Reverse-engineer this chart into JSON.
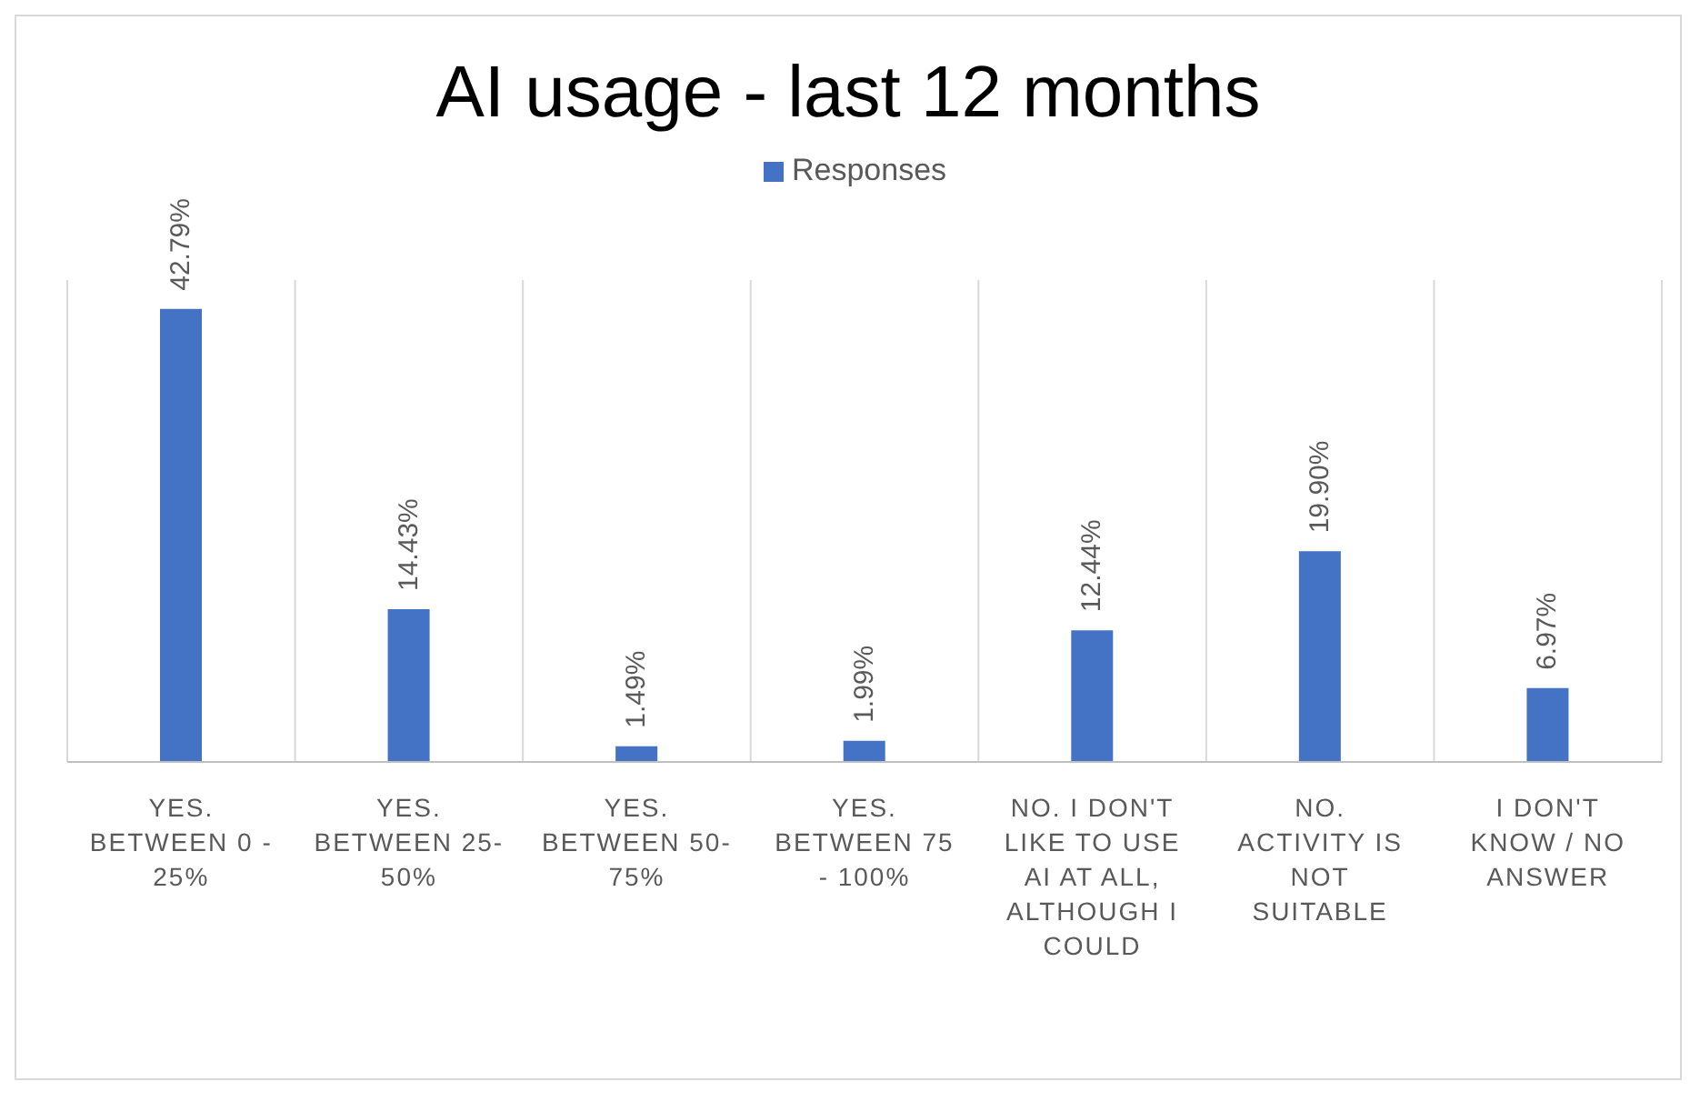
{
  "chart_data": {
    "type": "bar",
    "title": "AI usage - last 12 months",
    "categories": [
      "YES. BETWEEN 0 - 25%",
      "YES. BETWEEN 25- 50%",
      "YES. BETWEEN 50- 75%",
      "YES. BETWEEN 75 - 100%",
      "NO. I DON'T LIKE TO USE AI AT ALL, ALTHOUGH I COULD",
      "NO. ACTIVITY IS NOT SUITABLE",
      "I DON'T KNOW / NO ANSWER"
    ],
    "series": [
      {
        "name": "Responses",
        "color": "#4472c4",
        "values": [
          42.79,
          14.43,
          1.49,
          1.99,
          12.44,
          19.9,
          6.97
        ],
        "value_labels": [
          "42.79%",
          "14.43%",
          "1.49%",
          "1.99%",
          "12.44%",
          "19.90%",
          "6.97%"
        ]
      }
    ],
    "grid": "x",
    "legend": "top"
  }
}
